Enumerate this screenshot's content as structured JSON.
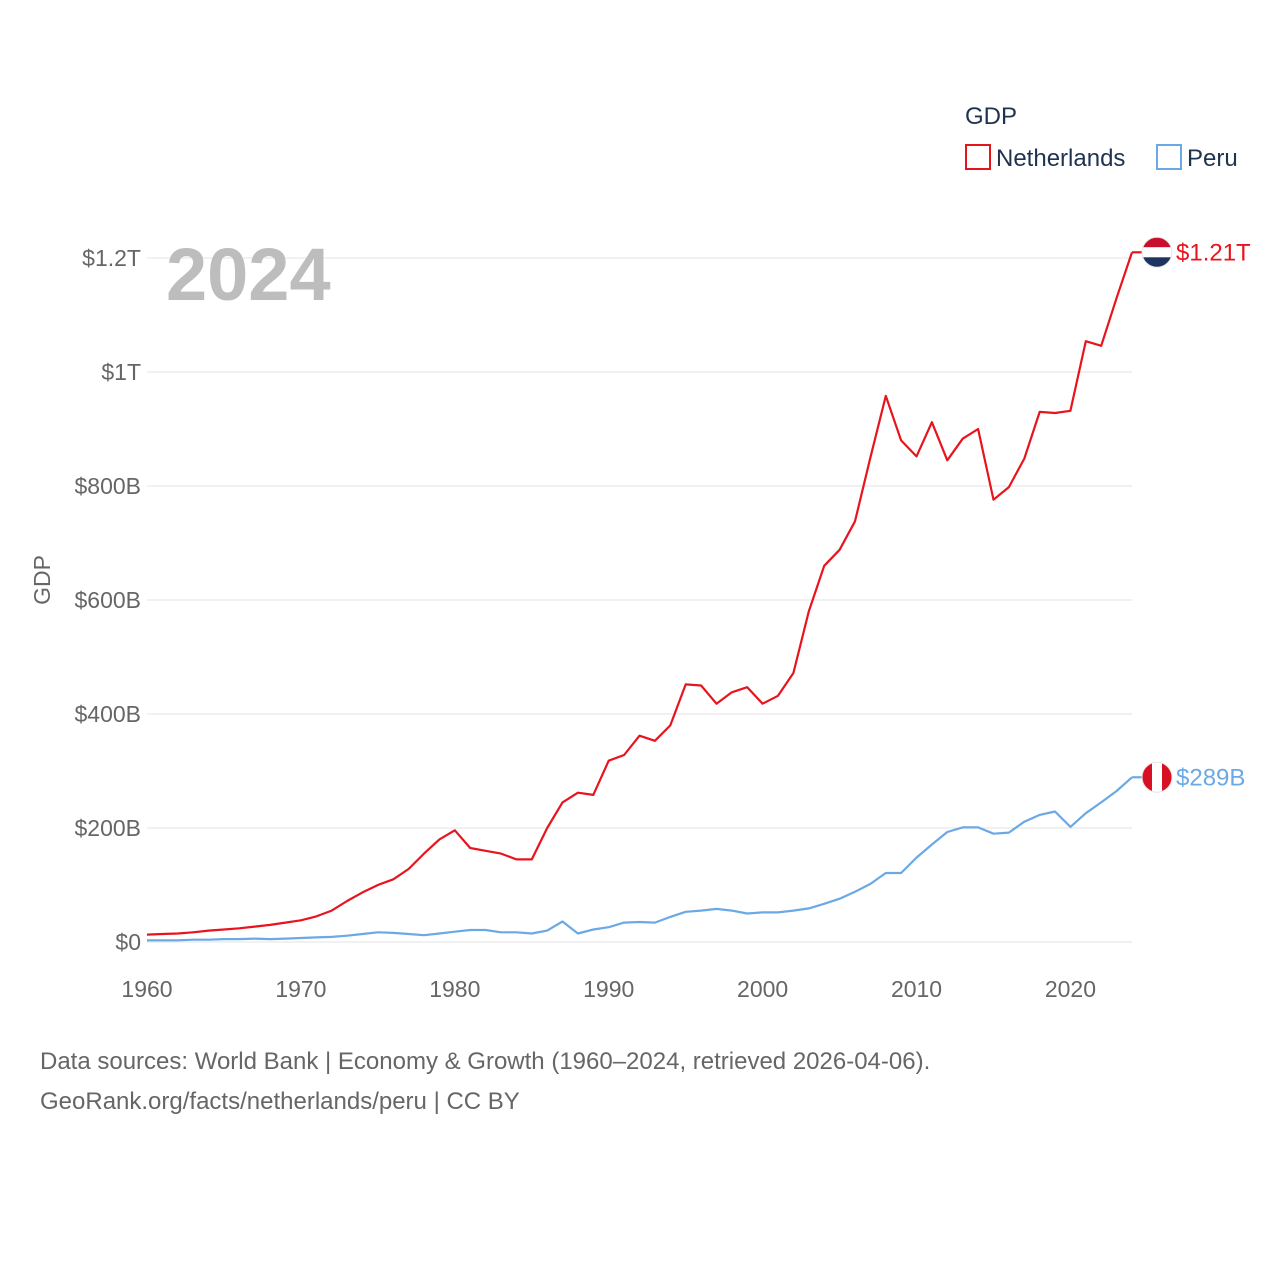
{
  "chart_data": {
    "type": "line",
    "title": "",
    "year_label": "2024",
    "ylabel": "GDP",
    "xlabel": "",
    "legend_title": "GDP",
    "legend_position": "top-right",
    "xlim": [
      1960,
      2024
    ],
    "ylim": [
      0,
      1.25
    ],
    "y_unit": "trillion USD",
    "x_ticks": [
      1960,
      1970,
      1980,
      1990,
      2000,
      2010,
      2020
    ],
    "y_ticks": [
      {
        "value": 0,
        "label": "$0"
      },
      {
        "value": 0.2,
        "label": "$200B"
      },
      {
        "value": 0.4,
        "label": "$400B"
      },
      {
        "value": 0.6,
        "label": "$600B"
      },
      {
        "value": 0.8,
        "label": "$800B"
      },
      {
        "value": 1.0,
        "label": "$1T"
      },
      {
        "value": 1.2,
        "label": "$1.2T"
      }
    ],
    "series": [
      {
        "name": "Netherlands",
        "color": "#e8141d",
        "end_label": "$1.21T",
        "flag": "netherlands-flag",
        "x": [
          1960,
          1961,
          1962,
          1963,
          1964,
          1965,
          1966,
          1967,
          1968,
          1969,
          1970,
          1971,
          1972,
          1973,
          1974,
          1975,
          1976,
          1977,
          1978,
          1979,
          1980,
          1981,
          1982,
          1983,
          1984,
          1985,
          1986,
          1987,
          1988,
          1989,
          1990,
          1991,
          1992,
          1993,
          1994,
          1995,
          1996,
          1997,
          1998,
          1999,
          2000,
          2001,
          2002,
          2003,
          2004,
          2005,
          2006,
          2007,
          2008,
          2009,
          2010,
          2011,
          2012,
          2013,
          2014,
          2015,
          2016,
          2017,
          2018,
          2019,
          2020,
          2021,
          2022,
          2023,
          2024
        ],
        "values": [
          0.013,
          0.014,
          0.015,
          0.017,
          0.02,
          0.022,
          0.024,
          0.027,
          0.03,
          0.034,
          0.038,
          0.045,
          0.055,
          0.072,
          0.087,
          0.1,
          0.11,
          0.128,
          0.155,
          0.18,
          0.196,
          0.165,
          0.16,
          0.155,
          0.145,
          0.145,
          0.2,
          0.245,
          0.262,
          0.258,
          0.318,
          0.328,
          0.362,
          0.353,
          0.38,
          0.452,
          0.45,
          0.418,
          0.438,
          0.447,
          0.418,
          0.432,
          0.472,
          0.58,
          0.66,
          0.688,
          0.738,
          0.85,
          0.958,
          0.88,
          0.852,
          0.912,
          0.845,
          0.883,
          0.9,
          0.776,
          0.798,
          0.848,
          0.93,
          0.928,
          0.932,
          1.054,
          1.046,
          1.13,
          1.21
        ]
      },
      {
        "name": "Peru",
        "color": "#6aa9e6",
        "end_label": "$289B",
        "flag": "peru-flag",
        "x": [
          1960,
          1961,
          1962,
          1963,
          1964,
          1965,
          1966,
          1967,
          1968,
          1969,
          1970,
          1971,
          1972,
          1973,
          1974,
          1975,
          1976,
          1977,
          1978,
          1979,
          1980,
          1981,
          1982,
          1983,
          1984,
          1985,
          1986,
          1987,
          1988,
          1989,
          1990,
          1991,
          1992,
          1993,
          1994,
          1995,
          1996,
          1997,
          1998,
          1999,
          2000,
          2001,
          2002,
          2003,
          2004,
          2005,
          2006,
          2007,
          2008,
          2009,
          2010,
          2011,
          2012,
          2013,
          2014,
          2015,
          2016,
          2017,
          2018,
          2019,
          2020,
          2021,
          2022,
          2023,
          2024
        ],
        "values": [
          0.003,
          0.003,
          0.003,
          0.004,
          0.004,
          0.005,
          0.005,
          0.006,
          0.005,
          0.006,
          0.007,
          0.008,
          0.009,
          0.011,
          0.014,
          0.017,
          0.016,
          0.014,
          0.012,
          0.015,
          0.018,
          0.021,
          0.021,
          0.017,
          0.017,
          0.015,
          0.02,
          0.036,
          0.015,
          0.022,
          0.026,
          0.034,
          0.035,
          0.034,
          0.044,
          0.053,
          0.055,
          0.058,
          0.055,
          0.05,
          0.052,
          0.052,
          0.055,
          0.059,
          0.067,
          0.076,
          0.088,
          0.102,
          0.121,
          0.121,
          0.148,
          0.171,
          0.193,
          0.201,
          0.201,
          0.19,
          0.192,
          0.211,
          0.223,
          0.229,
          0.202,
          0.226,
          0.245,
          0.265,
          0.289
        ]
      }
    ]
  },
  "footer": {
    "line1": "Data sources: World Bank | Economy & Growth (1960–2024, retrieved 2026-04-06).",
    "line2": "GeoRank.org/facts/netherlands/peru | CC BY"
  }
}
